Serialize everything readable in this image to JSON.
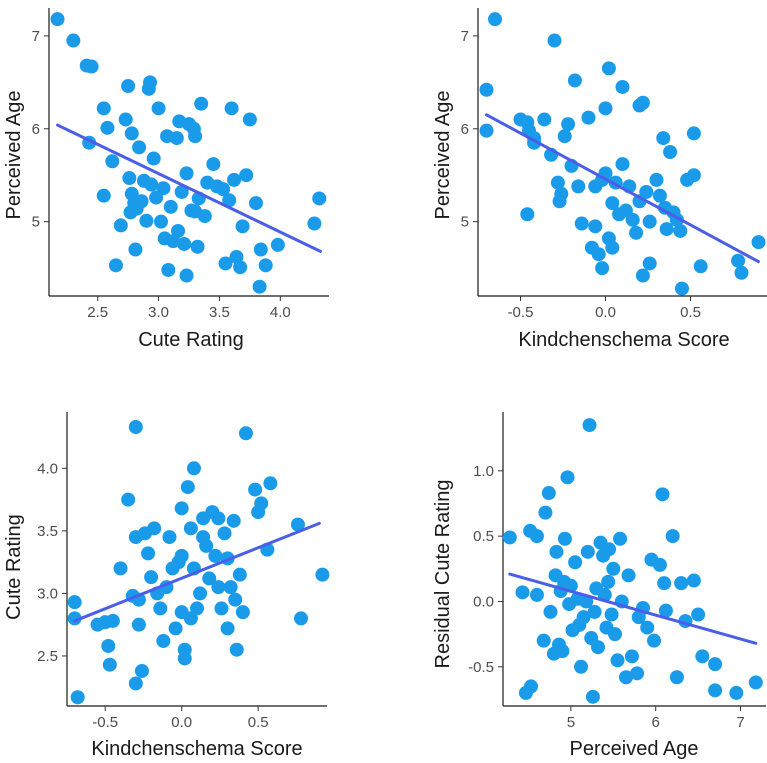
{
  "colors": {
    "point": "#1a9bea",
    "fit": "#4a5ee8",
    "axis": "#1a1a1a",
    "tick": "#4d4d4d"
  },
  "chart_data": [
    {
      "type": "scatter",
      "name": "cute-vs-age",
      "xlabel": "Cute Rating",
      "ylabel": "Perceived Age",
      "xlim": [
        2.1,
        4.4
      ],
      "ylim": [
        4.2,
        7.3
      ],
      "xticks": [
        2.5,
        3.0,
        3.5,
        4.0
      ],
      "xtick_labels": [
        "2.5",
        "3.0",
        "3.5",
        "4.0"
      ],
      "yticks": [
        5,
        6,
        7
      ],
      "ytick_labels": [
        "5",
        "6",
        "7"
      ],
      "fit_line": [
        [
          2.17,
          6.04
        ],
        [
          4.33,
          4.68
        ]
      ],
      "points": [
        [
          2.17,
          7.18
        ],
        [
          2.3,
          6.95
        ],
        [
          2.41,
          6.68
        ],
        [
          2.45,
          6.67
        ],
        [
          2.43,
          5.85
        ],
        [
          2.55,
          6.22
        ],
        [
          2.58,
          6.01
        ],
        [
          2.55,
          5.28
        ],
        [
          2.62,
          5.65
        ],
        [
          2.65,
          4.53
        ],
        [
          2.69,
          4.96
        ],
        [
          2.73,
          6.1
        ],
        [
          2.76,
          5.47
        ],
        [
          2.75,
          6.46
        ],
        [
          2.78,
          5.95
        ],
        [
          2.77,
          5.1
        ],
        [
          2.78,
          5.3
        ],
        [
          2.8,
          5.2
        ],
        [
          2.81,
          4.7
        ],
        [
          2.82,
          5.14
        ],
        [
          2.84,
          5.8
        ],
        [
          2.86,
          5.22
        ],
        [
          2.88,
          5.44
        ],
        [
          2.9,
          5.01
        ],
        [
          2.93,
          6.5
        ],
        [
          2.92,
          6.43
        ],
        [
          2.94,
          5.4
        ],
        [
          2.96,
          5.68
        ],
        [
          2.98,
          5.26
        ],
        [
          3.0,
          6.22
        ],
        [
          3.02,
          5.0
        ],
        [
          3.04,
          5.36
        ],
        [
          3.05,
          4.82
        ],
        [
          3.07,
          5.92
        ],
        [
          3.08,
          4.48
        ],
        [
          3.1,
          5.16
        ],
        [
          3.12,
          4.79
        ],
        [
          3.15,
          5.9
        ],
        [
          3.16,
          4.9
        ],
        [
          3.17,
          6.08
        ],
        [
          3.19,
          5.32
        ],
        [
          3.21,
          4.76
        ],
        [
          3.23,
          4.42
        ],
        [
          3.23,
          5.52
        ],
        [
          3.25,
          6.05
        ],
        [
          3.27,
          5.12
        ],
        [
          3.29,
          6.0
        ],
        [
          3.3,
          5.11
        ],
        [
          3.3,
          5.92
        ],
        [
          3.32,
          4.73
        ],
        [
          3.33,
          5.25
        ],
        [
          3.35,
          6.27
        ],
        [
          3.38,
          5.06
        ],
        [
          3.4,
          5.42
        ],
        [
          3.45,
          5.62
        ],
        [
          3.48,
          5.38
        ],
        [
          3.53,
          5.35
        ],
        [
          3.55,
          4.55
        ],
        [
          3.58,
          5.23
        ],
        [
          3.62,
          5.45
        ],
        [
          3.6,
          6.22
        ],
        [
          3.64,
          4.62
        ],
        [
          3.67,
          4.51
        ],
        [
          3.69,
          4.95
        ],
        [
          3.72,
          5.5
        ],
        [
          3.75,
          6.1
        ],
        [
          3.8,
          5.2
        ],
        [
          3.84,
          4.7
        ],
        [
          3.88,
          4.53
        ],
        [
          3.83,
          4.3
        ],
        [
          3.98,
          4.75
        ],
        [
          4.28,
          4.98
        ],
        [
          4.32,
          5.25
        ]
      ]
    },
    {
      "type": "scatter",
      "name": "kindchenschema-vs-age",
      "xlabel": "Kindchenschema Score",
      "ylabel": "Perceived Age",
      "xlim": [
        -0.75,
        0.95
      ],
      "ylim": [
        4.2,
        7.3
      ],
      "xticks": [
        -0.5,
        0.0,
        0.5
      ],
      "xtick_labels": [
        "-0.5",
        "0.0",
        "0.5"
      ],
      "yticks": [
        5,
        6,
        7
      ],
      "ytick_labels": [
        "5",
        "6",
        "7"
      ],
      "fit_line": [
        [
          -0.7,
          6.15
        ],
        [
          0.9,
          4.57
        ]
      ],
      "points": [
        [
          -0.65,
          7.18
        ],
        [
          -0.7,
          6.42
        ],
        [
          -0.7,
          5.98
        ],
        [
          -0.5,
          6.1
        ],
        [
          -0.46,
          6.07
        ],
        [
          -0.45,
          5.98
        ],
        [
          -0.42,
          5.85
        ],
        [
          -0.46,
          5.08
        ],
        [
          -0.42,
          5.9
        ],
        [
          -0.36,
          6.1
        ],
        [
          -0.32,
          5.72
        ],
        [
          -0.3,
          6.95
        ],
        [
          -0.28,
          5.42
        ],
        [
          -0.26,
          5.3
        ],
        [
          -0.27,
          5.22
        ],
        [
          -0.24,
          5.92
        ],
        [
          -0.22,
          6.05
        ],
        [
          -0.2,
          5.6
        ],
        [
          -0.18,
          6.52
        ],
        [
          -0.16,
          5.38
        ],
        [
          -0.14,
          4.98
        ],
        [
          -0.1,
          6.12
        ],
        [
          -0.08,
          4.72
        ],
        [
          -0.06,
          4.95
        ],
        [
          -0.06,
          5.38
        ],
        [
          -0.04,
          4.65
        ],
        [
          -0.02,
          5.45
        ],
        [
          -0.02,
          4.5
        ],
        [
          0.0,
          6.22
        ],
        [
          0.0,
          5.52
        ],
        [
          0.02,
          6.65
        ],
        [
          0.02,
          4.82
        ],
        [
          0.04,
          5.2
        ],
        [
          0.04,
          4.72
        ],
        [
          0.06,
          5.42
        ],
        [
          0.08,
          5.08
        ],
        [
          0.1,
          6.45
        ],
        [
          0.1,
          5.62
        ],
        [
          0.12,
          5.12
        ],
        [
          0.14,
          5.38
        ],
        [
          0.16,
          5.02
        ],
        [
          0.18,
          4.88
        ],
        [
          0.2,
          6.25
        ],
        [
          0.2,
          5.22
        ],
        [
          0.22,
          6.28
        ],
        [
          0.22,
          4.42
        ],
        [
          0.24,
          5.32
        ],
        [
          0.26,
          5.0
        ],
        [
          0.26,
          4.55
        ],
        [
          0.3,
          5.45
        ],
        [
          0.32,
          5.28
        ],
        [
          0.34,
          5.9
        ],
        [
          0.35,
          5.15
        ],
        [
          0.36,
          4.92
        ],
        [
          0.38,
          5.75
        ],
        [
          0.4,
          5.1
        ],
        [
          0.42,
          5.02
        ],
        [
          0.44,
          4.9
        ],
        [
          0.45,
          4.28
        ],
        [
          0.48,
          5.45
        ],
        [
          0.52,
          5.95
        ],
        [
          0.52,
          5.5
        ],
        [
          0.56,
          4.52
        ],
        [
          0.78,
          4.58
        ],
        [
          0.8,
          4.45
        ],
        [
          0.9,
          4.78
        ]
      ]
    },
    {
      "type": "scatter",
      "name": "kindchenschema-vs-cute",
      "xlabel": "Kindchenschema Score",
      "ylabel": "Cute Rating",
      "xlim": [
        -0.75,
        0.95
      ],
      "ylim": [
        2.1,
        4.45
      ],
      "xticks": [
        -0.5,
        0.0,
        0.5
      ],
      "xtick_labels": [
        "-0.5",
        "0.0",
        "0.5"
      ],
      "yticks": [
        2.5,
        3.0,
        3.5,
        4.0
      ],
      "ytick_labels": [
        "2.5",
        "3.0",
        "3.5",
        "4.0"
      ],
      "fit_line": [
        [
          -0.7,
          2.78
        ],
        [
          0.9,
          3.56
        ]
      ],
      "points": [
        [
          -0.7,
          2.93
        ],
        [
          -0.7,
          2.8
        ],
        [
          -0.68,
          2.17
        ],
        [
          -0.55,
          2.75
        ],
        [
          -0.5,
          2.77
        ],
        [
          -0.48,
          2.58
        ],
        [
          -0.47,
          2.43
        ],
        [
          -0.45,
          2.78
        ],
        [
          -0.4,
          3.2
        ],
        [
          -0.35,
          3.75
        ],
        [
          -0.32,
          2.98
        ],
        [
          -0.3,
          4.33
        ],
        [
          -0.3,
          3.45
        ],
        [
          -0.3,
          2.28
        ],
        [
          -0.28,
          2.95
        ],
        [
          -0.28,
          2.75
        ],
        [
          -0.26,
          2.38
        ],
        [
          -0.24,
          3.48
        ],
        [
          -0.22,
          3.32
        ],
        [
          -0.2,
          3.13
        ],
        [
          -0.18,
          3.52
        ],
        [
          -0.16,
          3.0
        ],
        [
          -0.14,
          2.88
        ],
        [
          -0.12,
          2.62
        ],
        [
          -0.1,
          3.05
        ],
        [
          -0.08,
          3.45
        ],
        [
          -0.06,
          3.2
        ],
        [
          -0.04,
          2.72
        ],
        [
          -0.02,
          3.25
        ],
        [
          0.0,
          3.68
        ],
        [
          0.0,
          3.3
        ],
        [
          0.0,
          2.85
        ],
        [
          0.02,
          2.55
        ],
        [
          0.02,
          2.48
        ],
        [
          0.04,
          3.85
        ],
        [
          0.06,
          3.52
        ],
        [
          0.06,
          2.8
        ],
        [
          0.08,
          4.0
        ],
        [
          0.08,
          3.2
        ],
        [
          0.1,
          2.88
        ],
        [
          0.12,
          3.0
        ],
        [
          0.14,
          3.6
        ],
        [
          0.14,
          3.45
        ],
        [
          0.16,
          3.38
        ],
        [
          0.18,
          3.12
        ],
        [
          0.2,
          3.65
        ],
        [
          0.22,
          3.3
        ],
        [
          0.24,
          3.6
        ],
        [
          0.24,
          3.05
        ],
        [
          0.26,
          2.88
        ],
        [
          0.28,
          3.48
        ],
        [
          0.3,
          3.28
        ],
        [
          0.3,
          2.72
        ],
        [
          0.32,
          3.05
        ],
        [
          0.34,
          3.58
        ],
        [
          0.35,
          2.95
        ],
        [
          0.36,
          2.55
        ],
        [
          0.38,
          3.15
        ],
        [
          0.4,
          2.85
        ],
        [
          0.42,
          4.28
        ],
        [
          0.48,
          3.83
        ],
        [
          0.5,
          3.65
        ],
        [
          0.52,
          3.72
        ],
        [
          0.56,
          3.35
        ],
        [
          0.58,
          3.88
        ],
        [
          0.76,
          3.55
        ],
        [
          0.78,
          2.8
        ],
        [
          0.92,
          3.15
        ]
      ]
    },
    {
      "type": "scatter",
      "name": "age-vs-residual-cute",
      "xlabel": "Perceived Age",
      "ylabel": "Residual Cute Rating",
      "xlim": [
        4.2,
        7.3
      ],
      "ylim": [
        -0.8,
        1.45
      ],
      "xticks": [
        5,
        6,
        7
      ],
      "xtick_labels": [
        "5",
        "6",
        "7"
      ],
      "yticks": [
        -0.5,
        0.0,
        0.5,
        1.0
      ],
      "ytick_labels": [
        "-0.5",
        "0.0",
        "0.5",
        "1.0"
      ],
      "fit_line": [
        [
          4.28,
          0.21
        ],
        [
          7.18,
          -0.32
        ]
      ],
      "points": [
        [
          4.28,
          0.49
        ],
        [
          4.43,
          0.07
        ],
        [
          4.47,
          -0.7
        ],
        [
          4.52,
          0.54
        ],
        [
          4.53,
          -0.65
        ],
        [
          4.6,
          0.5
        ],
        [
          4.6,
          0.05
        ],
        [
          4.68,
          -0.3
        ],
        [
          4.7,
          0.68
        ],
        [
          4.74,
          0.83
        ],
        [
          4.76,
          -0.08
        ],
        [
          4.8,
          -0.4
        ],
        [
          4.82,
          0.2
        ],
        [
          4.83,
          0.38
        ],
        [
          4.86,
          -0.33
        ],
        [
          4.88,
          0.08
        ],
        [
          4.9,
          -0.38
        ],
        [
          4.92,
          0.15
        ],
        [
          4.93,
          0.48
        ],
        [
          4.96,
          0.95
        ],
        [
          4.98,
          -0.02
        ],
        [
          5.0,
          0.12
        ],
        [
          5.02,
          -0.22
        ],
        [
          5.05,
          0.3
        ],
        [
          5.08,
          0.02
        ],
        [
          5.1,
          -0.18
        ],
        [
          5.12,
          -0.5
        ],
        [
          5.15,
          -0.12
        ],
        [
          5.18,
          0.0
        ],
        [
          5.2,
          0.38
        ],
        [
          5.22,
          1.35
        ],
        [
          5.24,
          -0.28
        ],
        [
          5.26,
          -0.73
        ],
        [
          5.28,
          -0.08
        ],
        [
          5.3,
          0.1
        ],
        [
          5.32,
          -0.35
        ],
        [
          5.35,
          0.45
        ],
        [
          5.38,
          0.35
        ],
        [
          5.4,
          0.05
        ],
        [
          5.42,
          -0.2
        ],
        [
          5.44,
          0.15
        ],
        [
          5.45,
          0.4
        ],
        [
          5.48,
          -0.1
        ],
        [
          5.5,
          0.25
        ],
        [
          5.52,
          -0.25
        ],
        [
          5.55,
          -0.45
        ],
        [
          5.58,
          0.48
        ],
        [
          5.6,
          0.0
        ],
        [
          5.65,
          -0.58
        ],
        [
          5.68,
          0.2
        ],
        [
          5.72,
          -0.42
        ],
        [
          5.78,
          -0.55
        ],
        [
          5.8,
          -0.12
        ],
        [
          5.85,
          -0.05
        ],
        [
          5.9,
          -0.2
        ],
        [
          5.95,
          0.32
        ],
        [
          5.98,
          -0.3
        ],
        [
          6.05,
          0.28
        ],
        [
          6.08,
          0.82
        ],
        [
          6.1,
          0.14
        ],
        [
          6.12,
          -0.07
        ],
        [
          6.2,
          0.5
        ],
        [
          6.25,
          -0.58
        ],
        [
          6.3,
          0.14
        ],
        [
          6.35,
          -0.15
        ],
        [
          6.45,
          0.16
        ],
        [
          6.5,
          -0.1
        ],
        [
          6.55,
          -0.42
        ],
        [
          6.7,
          -0.48
        ],
        [
          6.7,
          -0.68
        ],
        [
          6.95,
          -0.7
        ],
        [
          7.18,
          -0.62
        ]
      ]
    }
  ]
}
